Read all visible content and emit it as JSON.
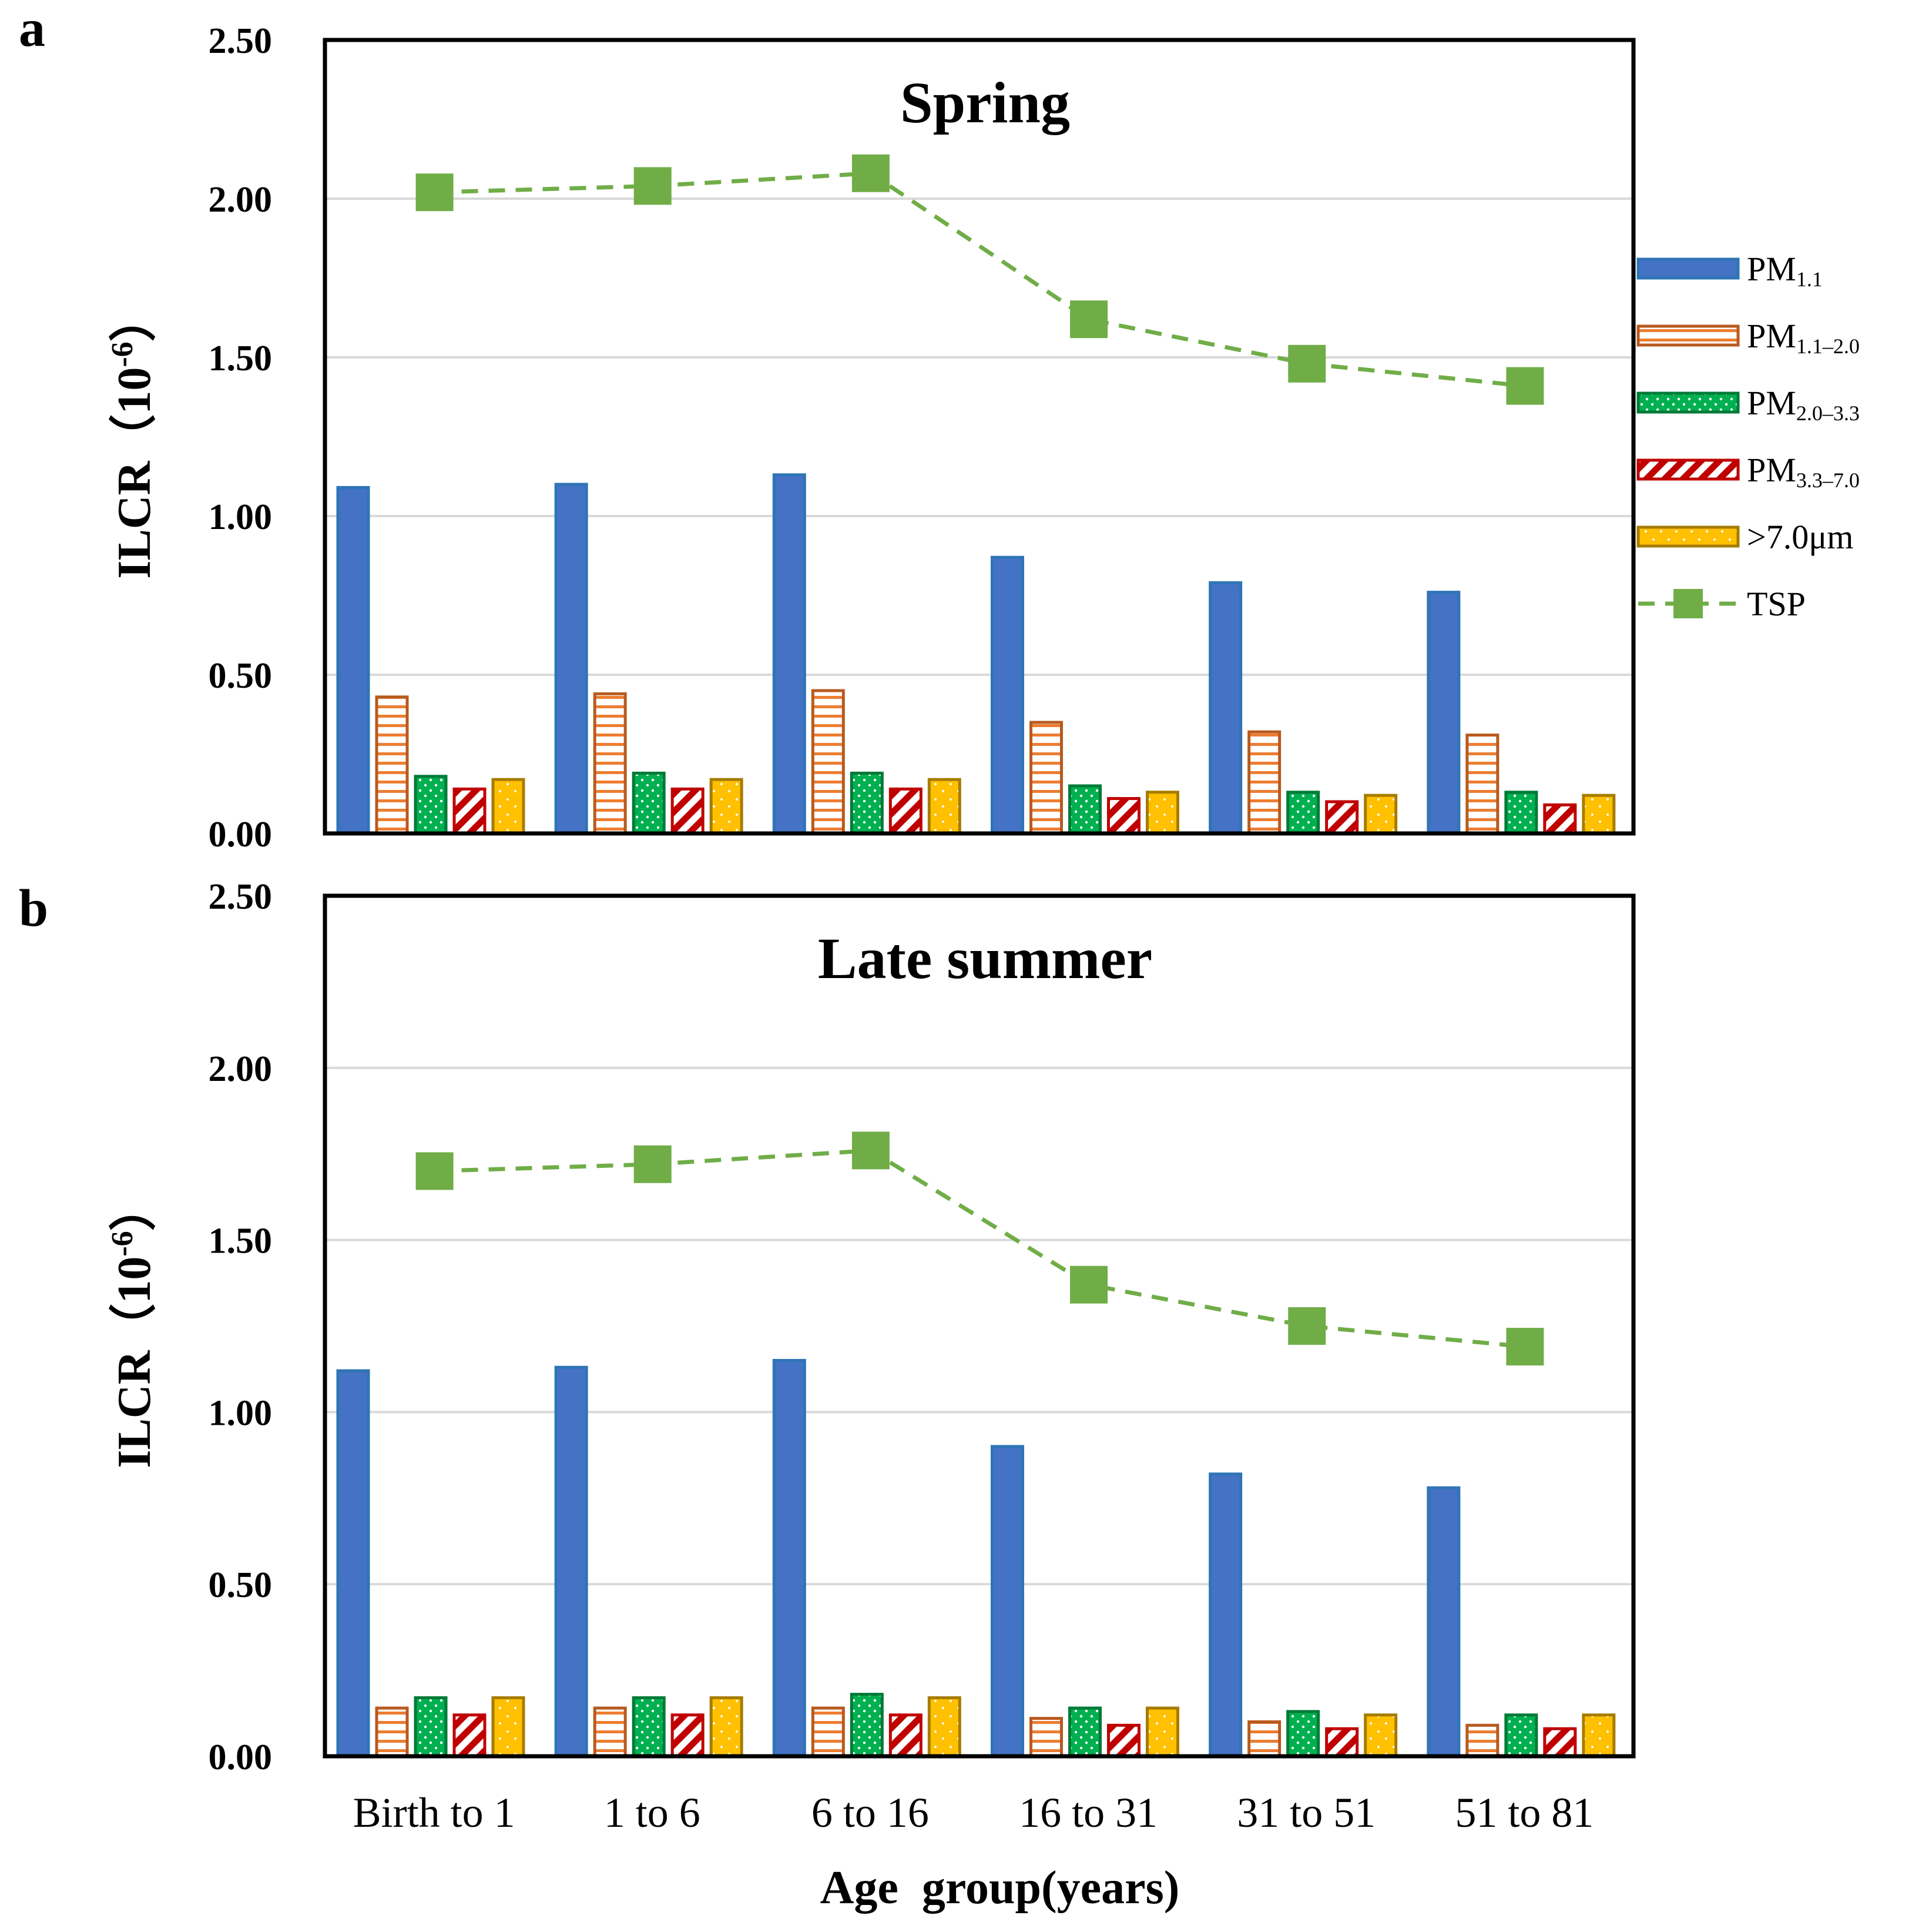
{
  "chart_data": [
    {
      "type": "bar",
      "panel_label": "a",
      "title": "Spring",
      "xlabel": "",
      "ylabel": "ILCR（10",
      "ylabel_exp": "-6",
      "ylabel_close": "）",
      "ylim": [
        0,
        2.5
      ],
      "yticks": [
        "0.00",
        "0.50",
        "1.00",
        "1.50",
        "2.00",
        "2.50"
      ],
      "grid": true,
      "categories": [
        "Birth to 1",
        "1 to 6",
        "6 to 16",
        "16 to 31",
        "31 to 51",
        "51 to 81"
      ],
      "series": [
        {
          "name": "PM1.1",
          "values": [
            1.09,
            1.1,
            1.13,
            0.87,
            0.79,
            0.76
          ]
        },
        {
          "name": "PM1.1–2.0",
          "values": [
            0.43,
            0.44,
            0.45,
            0.35,
            0.32,
            0.31
          ]
        },
        {
          "name": "PM2.0–3.3",
          "values": [
            0.18,
            0.19,
            0.19,
            0.15,
            0.13,
            0.13
          ]
        },
        {
          "name": "PM3.3–7.0",
          "values": [
            0.14,
            0.14,
            0.14,
            0.11,
            0.1,
            0.09
          ]
        },
        {
          "name": ">7.0μm",
          "values": [
            0.17,
            0.17,
            0.17,
            0.13,
            0.12,
            0.12
          ]
        },
        {
          "name": "TSP",
          "type": "line",
          "values": [
            2.02,
            2.04,
            2.08,
            1.62,
            1.48,
            1.41
          ]
        }
      ]
    },
    {
      "type": "bar",
      "panel_label": "b",
      "title": "Late summer",
      "xlabel": "Age  group(years)",
      "ylabel": "ILCR（10",
      "ylabel_exp": "-6",
      "ylabel_close": "）",
      "ylim": [
        0,
        2.5
      ],
      "yticks": [
        "0.00",
        "0.50",
        "1.00",
        "1.50",
        "2.00",
        "2.50"
      ],
      "grid": true,
      "categories": [
        "Birth to 1",
        "1 to 6",
        "6 to 16",
        "16 to 31",
        "31 to 51",
        "51 to 81"
      ],
      "series": [
        {
          "name": "PM1.1",
          "values": [
            1.12,
            1.13,
            1.15,
            0.9,
            0.82,
            0.78
          ]
        },
        {
          "name": "PM1.1–2.0",
          "values": [
            0.14,
            0.14,
            0.14,
            0.11,
            0.1,
            0.09
          ]
        },
        {
          "name": "PM2.0–3.3",
          "values": [
            0.17,
            0.17,
            0.18,
            0.14,
            0.13,
            0.12
          ]
        },
        {
          "name": "PM3.3–7.0",
          "values": [
            0.12,
            0.12,
            0.12,
            0.09,
            0.08,
            0.08
          ]
        },
        {
          "name": ">7.0μm",
          "values": [
            0.17,
            0.17,
            0.17,
            0.14,
            0.12,
            0.12
          ]
        },
        {
          "name": "TSP",
          "type": "line",
          "values": [
            1.7,
            1.72,
            1.76,
            1.37,
            1.25,
            1.19
          ]
        }
      ]
    }
  ],
  "legend": {
    "placement": "right",
    "items": [
      {
        "base": "PM",
        "sub": "1.1"
      },
      {
        "base": "PM",
        "sub": "1.1–2.0"
      },
      {
        "base": "PM",
        "sub": "2.0–3.3"
      },
      {
        "base": "PM",
        "sub": "3.3–7.0"
      },
      {
        "base": ">7.0μm",
        "sub": ""
      },
      {
        "base": "TSP",
        "sub": ""
      }
    ]
  },
  "colors": {
    "pm11_fill": "#4472C4",
    "pm11_stroke": "#2E75B6",
    "pm1120_line": "#ED7D31",
    "pm1120_stroke": "#B85A1E",
    "pm2033_fill": "#00B050",
    "pm2033_stroke": "#007A37",
    "pm3370_fill": "#C00000",
    "pm3370_stroke": "#C00000",
    "gt7_fill": "#FFC000",
    "gt7_stroke": "#A67C00",
    "tsp": "#70AD47",
    "grid": "#D9D9D9",
    "axis": "#000000"
  }
}
